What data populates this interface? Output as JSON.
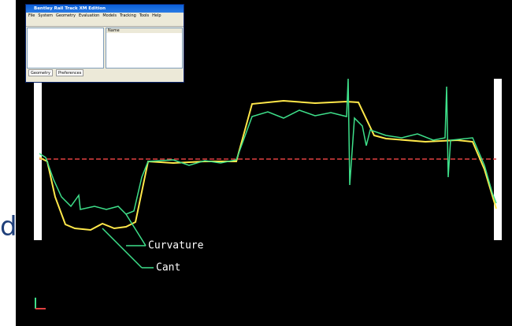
{
  "side_text": "d",
  "window": {
    "title": "Bentley Rail Track XM Edition",
    "menu": [
      "File",
      "System",
      "Geometry",
      "Evaluation",
      "Models",
      "Tracking",
      "Tools",
      "Help"
    ],
    "column_header": "Name",
    "tabs": [
      "Geometry",
      "Preferences"
    ]
  },
  "annotations": {
    "curvature": "Curvature",
    "cant": "Cant"
  }
}
